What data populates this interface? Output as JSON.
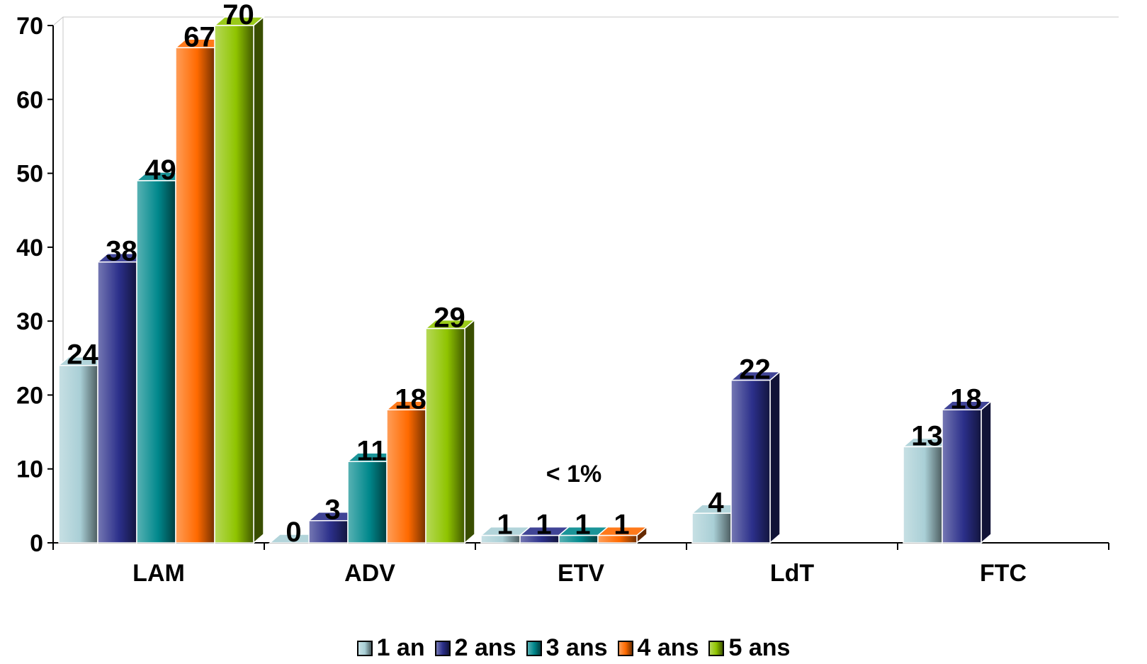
{
  "chart_data": {
    "type": "bar",
    "categories": [
      "LAM",
      "ADV",
      "ETV",
      "LdT",
      "FTC"
    ],
    "series": [
      {
        "name": "1 an",
        "values": [
          24,
          0,
          1,
          4,
          13
        ],
        "labels": [
          "24",
          "0",
          "1",
          "4",
          "13"
        ],
        "color": "#a9cfd6"
      },
      {
        "name": "2 ans",
        "values": [
          38,
          3,
          1,
          22,
          18
        ],
        "labels": [
          "38",
          "3",
          "1",
          "22",
          "18"
        ],
        "color": "#2b2f8a"
      },
      {
        "name": "3 ans",
        "values": [
          49,
          11,
          1,
          null,
          null
        ],
        "labels": [
          "49",
          "11",
          "1",
          "",
          ""
        ],
        "color": "#00888c"
      },
      {
        "name": "4 ans",
        "values": [
          67,
          18,
          1,
          null,
          null
        ],
        "labels": [
          "67",
          "18",
          "1",
          "",
          ""
        ],
        "color": "#ff6a00"
      },
      {
        "name": "5 ans",
        "values": [
          70,
          29,
          null,
          null,
          null
        ],
        "labels": [
          "70",
          "29",
          "",
          "",
          ""
        ],
        "color": "#8fc400"
      }
    ],
    "ylim": [
      0,
      70
    ],
    "yticks": [
      "0",
      "10",
      "20",
      "30",
      "40",
      "50",
      "60",
      "70"
    ],
    "grid": false,
    "legend_position": "bottom",
    "annotations": [
      {
        "category": "ETV",
        "text": "< 1%"
      }
    ]
  }
}
